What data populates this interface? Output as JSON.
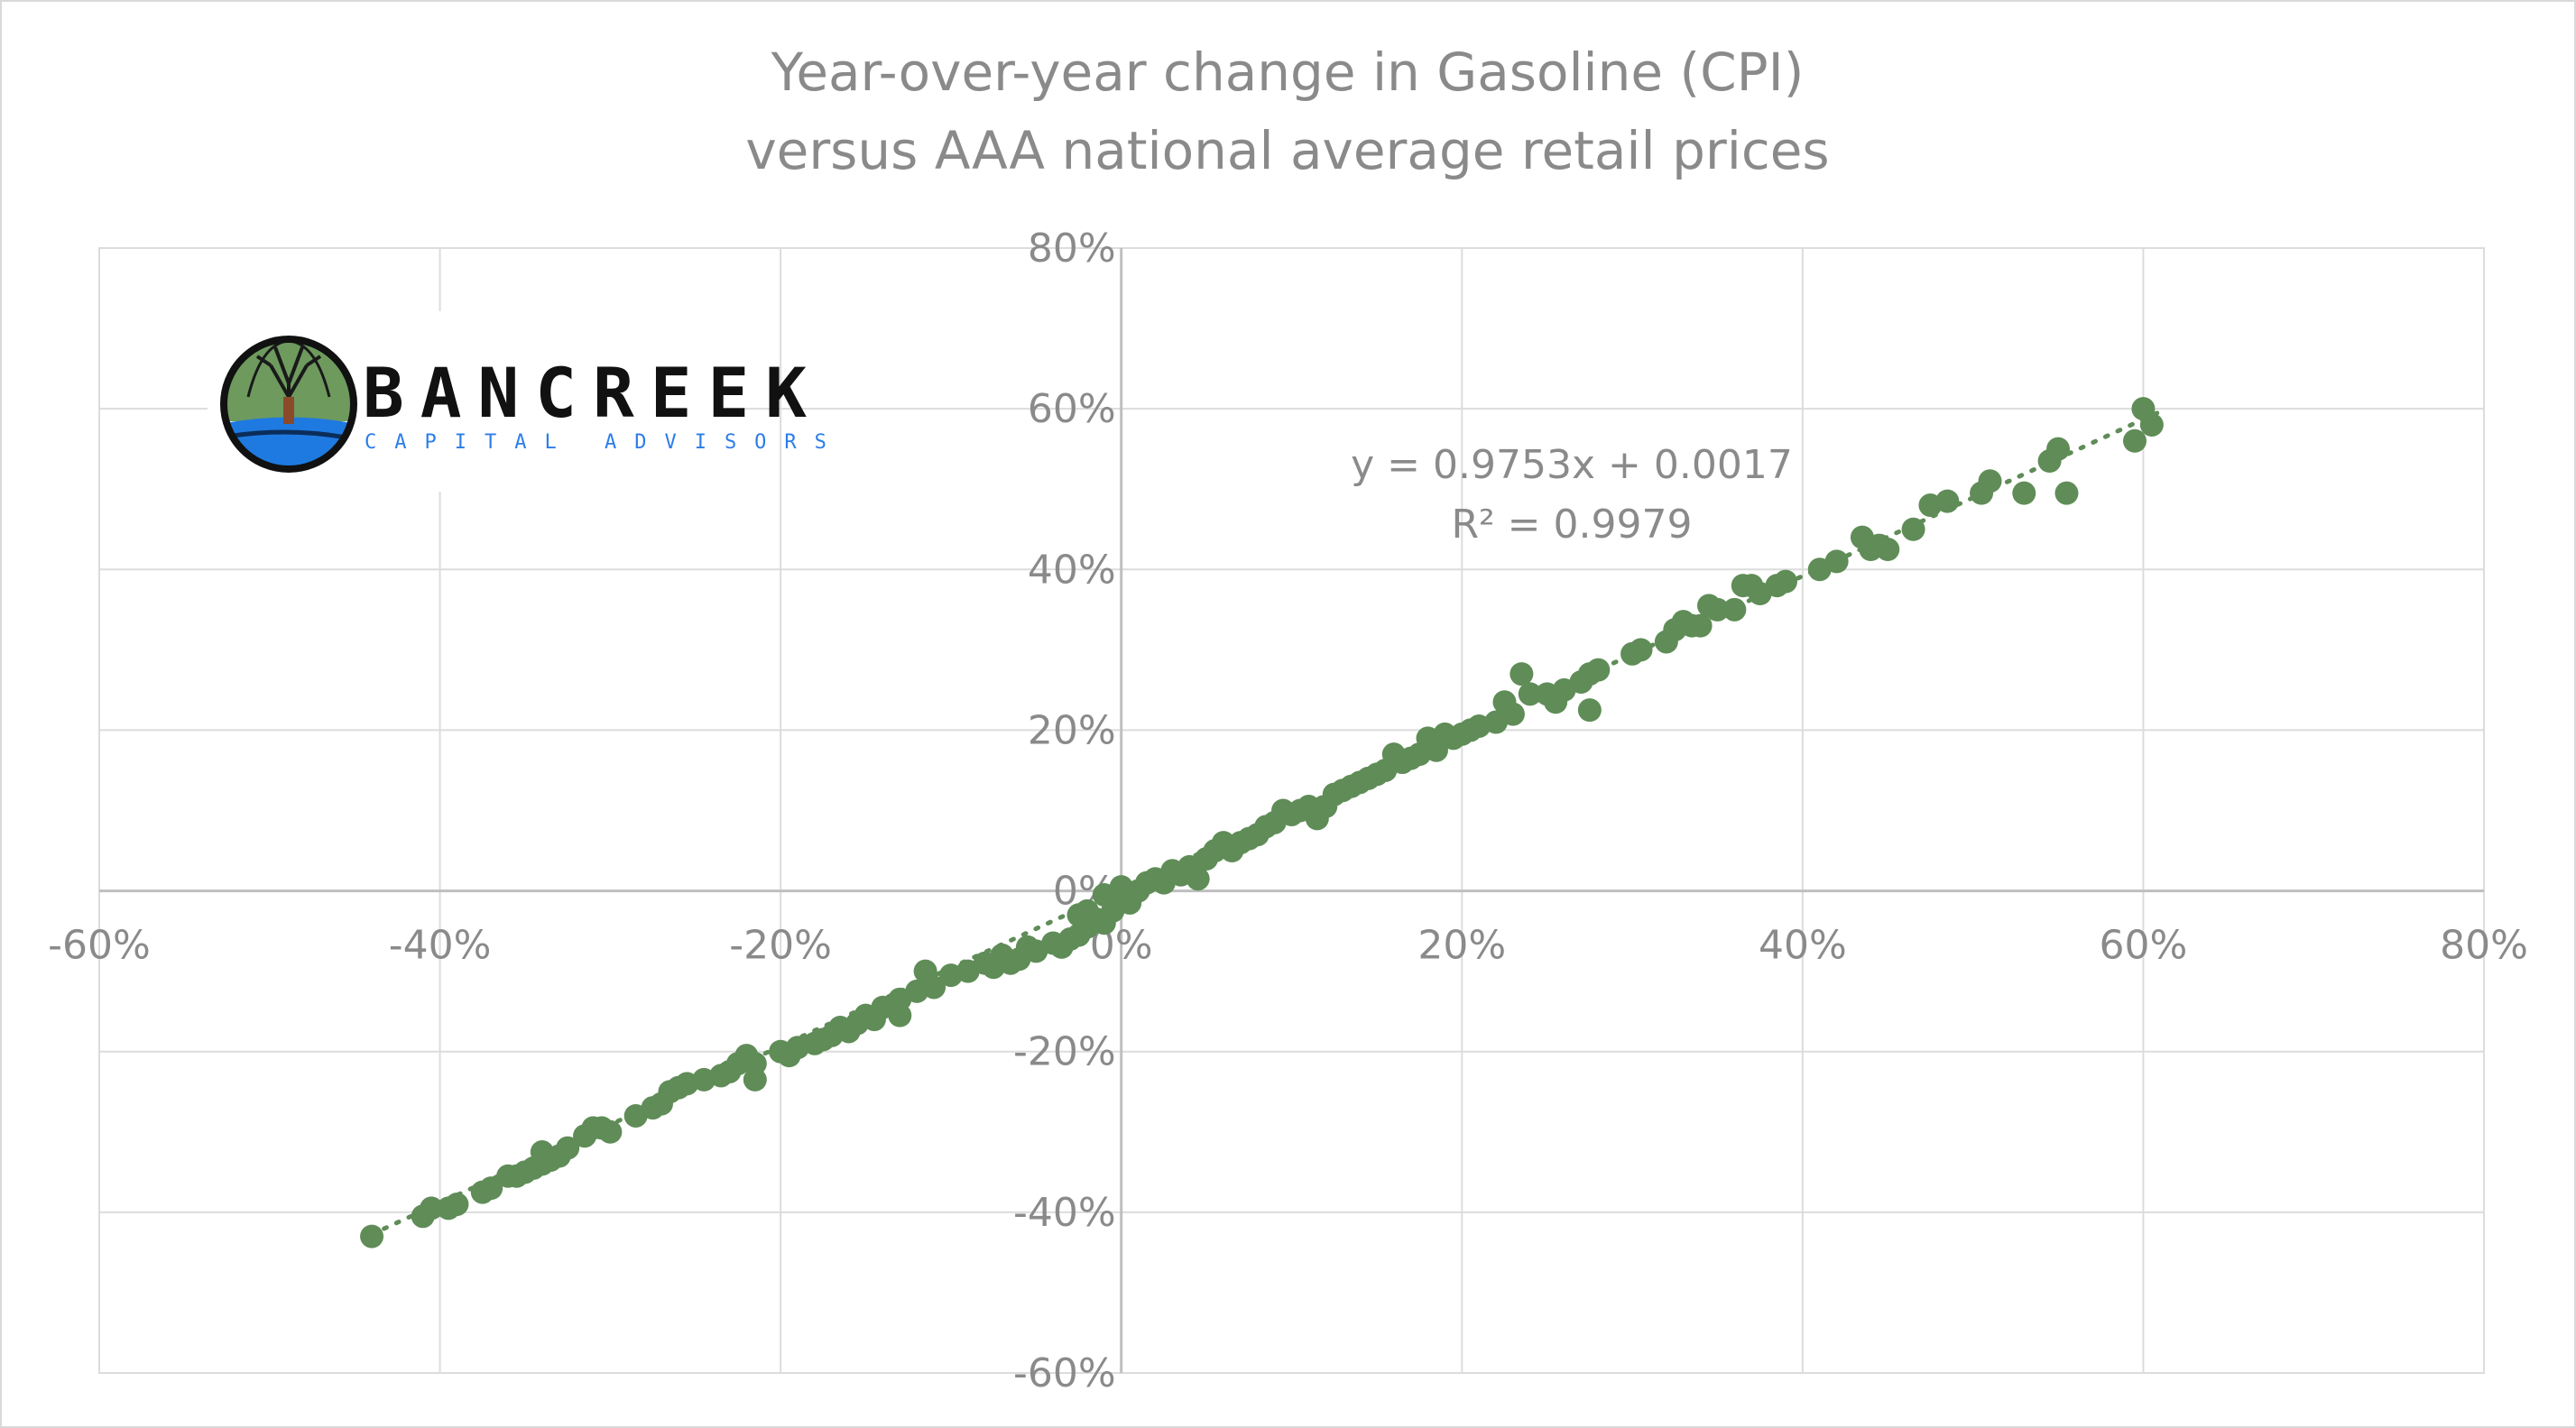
{
  "logo": {
    "name": "BANCREEK",
    "subtitle": "CAPITAL ADVISORS"
  },
  "chart_data": {
    "type": "scatter",
    "title": "Year-over-year change in Gasoline (CPI)",
    "subtitle": "versus AAA national average retail prices",
    "xlabel": "",
    "ylabel": "",
    "xlim": [
      -0.6,
      0.8
    ],
    "ylim": [
      -0.6,
      0.8
    ],
    "x_ticks": [
      -0.6,
      -0.4,
      -0.2,
      0.0,
      0.2,
      0.4,
      0.6,
      0.8
    ],
    "x_tick_labels": [
      "-60%",
      "-40%",
      "-20%",
      "0%",
      "20%",
      "40%",
      "60%",
      "80%"
    ],
    "y_ticks": [
      0.8,
      0.6,
      0.4,
      0.2,
      0.0,
      -0.2,
      -0.4,
      -0.6
    ],
    "y_tick_labels": [
      "80%",
      "60%",
      "40%",
      "20%",
      "0%",
      "-20%",
      "-40%",
      "-60%"
    ],
    "grid": true,
    "legend": "none",
    "point_color": "#5f8c57",
    "trendline": {
      "type": "linear",
      "slope": 0.9753,
      "intercept": 0.0017,
      "x_range": [
        -0.44,
        0.61
      ],
      "style": "dotted",
      "equation": "y = 0.9753x + 0.0017",
      "r_squared": "R² = 0.9979"
    },
    "series": [
      {
        "points": [
          [
            -0.44,
            -0.43
          ],
          [
            -0.41,
            -0.405
          ],
          [
            -0.405,
            -0.395
          ],
          [
            -0.395,
            -0.395
          ],
          [
            -0.39,
            -0.39
          ],
          [
            -0.375,
            -0.375
          ],
          [
            -0.37,
            -0.37
          ],
          [
            -0.36,
            -0.355
          ],
          [
            -0.355,
            -0.355
          ],
          [
            -0.35,
            -0.35
          ],
          [
            -0.345,
            -0.345
          ],
          [
            -0.34,
            -0.325
          ],
          [
            -0.34,
            -0.34
          ],
          [
            -0.335,
            -0.335
          ],
          [
            -0.33,
            -0.33
          ],
          [
            -0.325,
            -0.32
          ],
          [
            -0.315,
            -0.305
          ],
          [
            -0.31,
            -0.295
          ],
          [
            -0.305,
            -0.295
          ],
          [
            -0.3,
            -0.3
          ],
          [
            -0.285,
            -0.28
          ],
          [
            -0.275,
            -0.27
          ],
          [
            -0.27,
            -0.265
          ],
          [
            -0.265,
            -0.25
          ],
          [
            -0.26,
            -0.245
          ],
          [
            -0.255,
            -0.24
          ],
          [
            -0.245,
            -0.235
          ],
          [
            -0.235,
            -0.23
          ],
          [
            -0.23,
            -0.225
          ],
          [
            -0.225,
            -0.215
          ],
          [
            -0.22,
            -0.205
          ],
          [
            -0.215,
            -0.235
          ],
          [
            -0.215,
            -0.215
          ],
          [
            -0.2,
            -0.2
          ],
          [
            -0.195,
            -0.205
          ],
          [
            -0.19,
            -0.195
          ],
          [
            -0.18,
            -0.19
          ],
          [
            -0.175,
            -0.185
          ],
          [
            -0.17,
            -0.18
          ],
          [
            -0.165,
            -0.17
          ],
          [
            -0.16,
            -0.175
          ],
          [
            -0.155,
            -0.165
          ],
          [
            -0.15,
            -0.155
          ],
          [
            -0.145,
            -0.16
          ],
          [
            -0.14,
            -0.145
          ],
          [
            -0.13,
            -0.135
          ],
          [
            -0.13,
            -0.155
          ],
          [
            -0.12,
            -0.125
          ],
          [
            -0.115,
            -0.1
          ],
          [
            -0.11,
            -0.12
          ],
          [
            -0.1,
            -0.105
          ],
          [
            -0.09,
            -0.1
          ],
          [
            -0.08,
            -0.09
          ],
          [
            -0.075,
            -0.095
          ],
          [
            -0.07,
            -0.08
          ],
          [
            -0.065,
            -0.09
          ],
          [
            -0.06,
            -0.085
          ],
          [
            -0.055,
            -0.07
          ],
          [
            -0.05,
            -0.075
          ],
          [
            -0.04,
            -0.065
          ],
          [
            -0.035,
            -0.07
          ],
          [
            -0.03,
            -0.06
          ],
          [
            -0.025,
            -0.055
          ],
          [
            -0.02,
            -0.045
          ],
          [
            -0.015,
            -0.035
          ],
          [
            -0.01,
            -0.04
          ],
          [
            -0.005,
            -0.025
          ],
          [
            0.0,
            -0.01
          ],
          [
            0.005,
            -0.015
          ],
          [
            0.01,
            0.0
          ],
          [
            -0.02,
            -0.025
          ],
          [
            -0.025,
            -0.03
          ],
          [
            -0.01,
            -0.005
          ],
          [
            0.0,
            0.005
          ],
          [
            0.015,
            0.01
          ],
          [
            0.02,
            0.015
          ],
          [
            0.025,
            0.01
          ],
          [
            0.03,
            0.025
          ],
          [
            0.035,
            0.02
          ],
          [
            0.04,
            0.03
          ],
          [
            0.045,
            0.015
          ],
          [
            0.05,
            0.04
          ],
          [
            0.055,
            0.05
          ],
          [
            0.06,
            0.06
          ],
          [
            0.065,
            0.05
          ],
          [
            0.07,
            0.06
          ],
          [
            0.075,
            0.065
          ],
          [
            0.08,
            0.07
          ],
          [
            0.085,
            0.08
          ],
          [
            0.09,
            0.085
          ],
          [
            0.095,
            0.1
          ],
          [
            0.1,
            0.095
          ],
          [
            0.105,
            0.1
          ],
          [
            0.11,
            0.105
          ],
          [
            0.115,
            0.09
          ],
          [
            0.12,
            0.105
          ],
          [
            0.125,
            0.12
          ],
          [
            0.13,
            0.125
          ],
          [
            0.135,
            0.13
          ],
          [
            0.14,
            0.135
          ],
          [
            0.145,
            0.14
          ],
          [
            0.15,
            0.145
          ],
          [
            0.155,
            0.15
          ],
          [
            0.16,
            0.17
          ],
          [
            0.165,
            0.16
          ],
          [
            0.17,
            0.165
          ],
          [
            0.175,
            0.17
          ],
          [
            0.18,
            0.19
          ],
          [
            0.185,
            0.175
          ],
          [
            0.19,
            0.195
          ],
          [
            0.195,
            0.19
          ],
          [
            0.2,
            0.195
          ],
          [
            0.205,
            0.2
          ],
          [
            0.21,
            0.205
          ],
          [
            0.22,
            0.21
          ],
          [
            0.225,
            0.235
          ],
          [
            0.23,
            0.22
          ],
          [
            0.235,
            0.27
          ],
          [
            0.24,
            0.245
          ],
          [
            0.25,
            0.245
          ],
          [
            0.255,
            0.235
          ],
          [
            0.26,
            0.25
          ],
          [
            0.27,
            0.26
          ],
          [
            0.275,
            0.27
          ],
          [
            0.28,
            0.275
          ],
          [
            0.275,
            0.225
          ],
          [
            0.3,
            0.295
          ],
          [
            0.305,
            0.3
          ],
          [
            0.32,
            0.31
          ],
          [
            0.325,
            0.325
          ],
          [
            0.33,
            0.335
          ],
          [
            0.335,
            0.33
          ],
          [
            0.34,
            0.33
          ],
          [
            0.345,
            0.355
          ],
          [
            0.35,
            0.35
          ],
          [
            0.36,
            0.35
          ],
          [
            0.365,
            0.38
          ],
          [
            0.37,
            0.38
          ],
          [
            0.375,
            0.37
          ],
          [
            0.385,
            0.38
          ],
          [
            0.39,
            0.385
          ],
          [
            0.41,
            0.4
          ],
          [
            0.42,
            0.41
          ],
          [
            0.435,
            0.44
          ],
          [
            0.44,
            0.425
          ],
          [
            0.445,
            0.43
          ],
          [
            0.45,
            0.425
          ],
          [
            0.465,
            0.45
          ],
          [
            0.475,
            0.48
          ],
          [
            0.485,
            0.485
          ],
          [
            0.505,
            0.495
          ],
          [
            0.51,
            0.51
          ],
          [
            0.53,
            0.495
          ],
          [
            0.545,
            0.535
          ],
          [
            0.55,
            0.55
          ],
          [
            0.555,
            0.495
          ],
          [
            0.595,
            0.56
          ],
          [
            0.6,
            0.6
          ],
          [
            0.605,
            0.58
          ]
        ]
      }
    ]
  }
}
